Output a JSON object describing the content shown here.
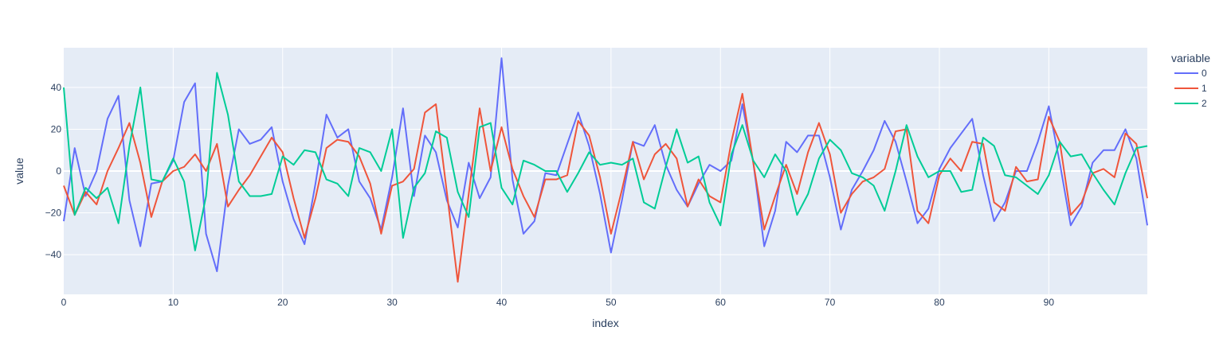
{
  "chart_data": {
    "type": "line",
    "title": "",
    "xlabel": "index",
    "ylabel": "value",
    "xlim": [
      0,
      99
    ],
    "ylim": [
      -59,
      59
    ],
    "x_ticks": [
      0,
      10,
      20,
      30,
      40,
      50,
      60,
      70,
      80,
      90
    ],
    "y_ticks": [
      -40,
      -20,
      0,
      20,
      40
    ],
    "grid": true,
    "legend": {
      "title": "variable",
      "placement": "top-right"
    },
    "x": [
      0,
      1,
      2,
      3,
      4,
      5,
      6,
      7,
      8,
      9,
      10,
      11,
      12,
      13,
      14,
      15,
      16,
      17,
      18,
      19,
      20,
      21,
      22,
      23,
      24,
      25,
      26,
      27,
      28,
      29,
      30,
      31,
      32,
      33,
      34,
      35,
      36,
      37,
      38,
      39,
      40,
      41,
      42,
      43,
      44,
      45,
      46,
      47,
      48,
      49,
      50,
      51,
      52,
      53,
      54,
      55,
      56,
      57,
      58,
      59,
      60,
      61,
      62,
      63,
      64,
      65,
      66,
      67,
      68,
      69,
      70,
      71,
      72,
      73,
      74,
      75,
      76,
      77,
      78,
      79,
      80,
      81,
      82,
      83,
      84,
      85,
      86,
      87,
      88,
      89,
      90,
      91,
      92,
      93,
      94,
      95,
      96,
      97,
      98,
      99
    ],
    "series": [
      {
        "name": "0",
        "color": "#636efa",
        "values": [
          -24,
          11,
          -12,
          0,
          25,
          36,
          -14,
          -36,
          -6,
          -5,
          5,
          33,
          42,
          -30,
          -48,
          -7,
          20,
          13,
          15,
          21,
          -5,
          -23,
          -35,
          -6,
          27,
          16,
          20,
          -5,
          -13,
          -28,
          -3,
          30,
          -12,
          17,
          9,
          -14,
          -27,
          4,
          -13,
          -3,
          54,
          -4,
          -30,
          -24,
          -1,
          -2,
          13,
          28,
          12,
          -11,
          -39,
          -14,
          14,
          12,
          22,
          3,
          -9,
          -17,
          -6,
          3,
          0,
          5,
          32,
          4,
          -36,
          -19,
          14,
          9,
          17,
          17,
          -3,
          -28,
          -9,
          0,
          10,
          24,
          14,
          -5,
          -25,
          -18,
          1,
          11,
          18,
          25,
          -2,
          -24,
          -15,
          0,
          0,
          14,
          31,
          4,
          -26,
          -17,
          4,
          10,
          10,
          20,
          6,
          -26
        ]
      },
      {
        "name": "1",
        "color": "#ef553b",
        "values": [
          -7,
          -21,
          -10,
          -16,
          0,
          11,
          23,
          4,
          -22,
          -5,
          0,
          2,
          8,
          0,
          13,
          -17,
          -9,
          -2,
          7,
          16,
          9,
          -13,
          -32,
          -13,
          11,
          15,
          14,
          7,
          -6,
          -30,
          -7,
          -5,
          1,
          28,
          32,
          -10,
          -53,
          -11,
          30,
          0,
          21,
          1,
          -12,
          -22,
          -4,
          -4,
          -2,
          24,
          17,
          -3,
          -30,
          -9,
          14,
          -4,
          8,
          13,
          6,
          -17,
          -4,
          -12,
          -15,
          14,
          37,
          4,
          -28,
          -12,
          3,
          -11,
          9,
          23,
          8,
          -20,
          -11,
          -5,
          -3,
          1,
          19,
          20,
          -19,
          -25,
          -2,
          6,
          0,
          14,
          13,
          -15,
          -19,
          2,
          -5,
          -4,
          26,
          14,
          -21,
          -15,
          -1,
          1,
          -3,
          18,
          13,
          -13
        ]
      },
      {
        "name": "2",
        "color": "#00cc96",
        "values": [
          40,
          -21,
          -8,
          -13,
          -8,
          -25,
          12,
          40,
          -4,
          -5,
          6,
          -5,
          -38,
          -12,
          47,
          27,
          -5,
          -12,
          -12,
          -11,
          7,
          3,
          10,
          9,
          -4,
          -6,
          -12,
          11,
          9,
          0,
          20,
          -32,
          -8,
          -1,
          19,
          16,
          -10,
          -22,
          21,
          23,
          -8,
          -16,
          5,
          3,
          0,
          0,
          -10,
          -1,
          9,
          3,
          4,
          3,
          6,
          -15,
          -18,
          2,
          20,
          4,
          7,
          -15,
          -26,
          8,
          22,
          5,
          -3,
          8,
          0,
          -21,
          -11,
          6,
          15,
          10,
          -1,
          -3,
          -7,
          -19,
          0,
          22,
          7,
          -3,
          0,
          0,
          -10,
          -9,
          16,
          12,
          -2,
          -3,
          -7,
          -11,
          -2,
          14,
          7,
          8,
          -1,
          -9,
          -16,
          -1,
          11,
          12
        ]
      }
    ]
  }
}
